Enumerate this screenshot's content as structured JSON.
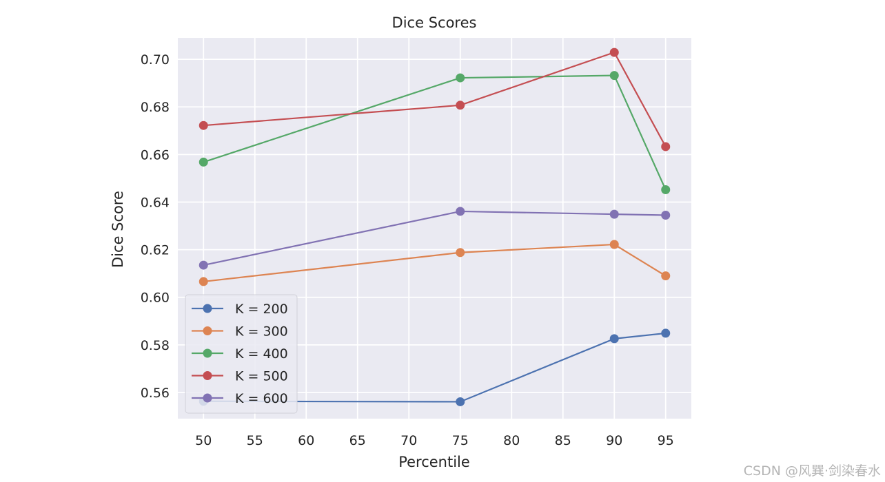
{
  "chart_data": {
    "type": "line",
    "title": "Dice Scores",
    "xlabel": "Percentile",
    "ylabel": "Dice Score",
    "x": [
      50,
      75,
      90,
      95
    ],
    "xlim": [
      47.5,
      97.5
    ],
    "ylim": [
      0.549,
      0.709
    ],
    "xticks": [
      50,
      55,
      60,
      65,
      70,
      75,
      80,
      85,
      90,
      95
    ],
    "yticks": [
      0.56,
      0.58,
      0.6,
      0.62,
      0.64,
      0.66,
      0.68,
      0.7
    ],
    "ytick_labels": [
      "0.56",
      "0.58",
      "0.60",
      "0.62",
      "0.64",
      "0.66",
      "0.68",
      "0.70"
    ],
    "grid": true,
    "legend_position": "lower-left",
    "series": [
      {
        "name": "K = 200",
        "color": "#4c72b0",
        "values": [
          0.5563,
          0.5561,
          0.5826,
          0.5849
        ]
      },
      {
        "name": "K = 300",
        "color": "#dd8452",
        "values": [
          0.6066,
          0.6188,
          0.6222,
          0.609
        ]
      },
      {
        "name": "K = 400",
        "color": "#55a868",
        "values": [
          0.6568,
          0.6922,
          0.6932,
          0.6452
        ]
      },
      {
        "name": "K = 500",
        "color": "#c44e52",
        "values": [
          0.6722,
          0.6807,
          0.7029,
          0.6633
        ]
      },
      {
        "name": "K = 600",
        "color": "#8172b3",
        "values": [
          0.6135,
          0.6361,
          0.6349,
          0.6345
        ]
      }
    ]
  },
  "watermark": "CSDN @风巽·剑染春水"
}
